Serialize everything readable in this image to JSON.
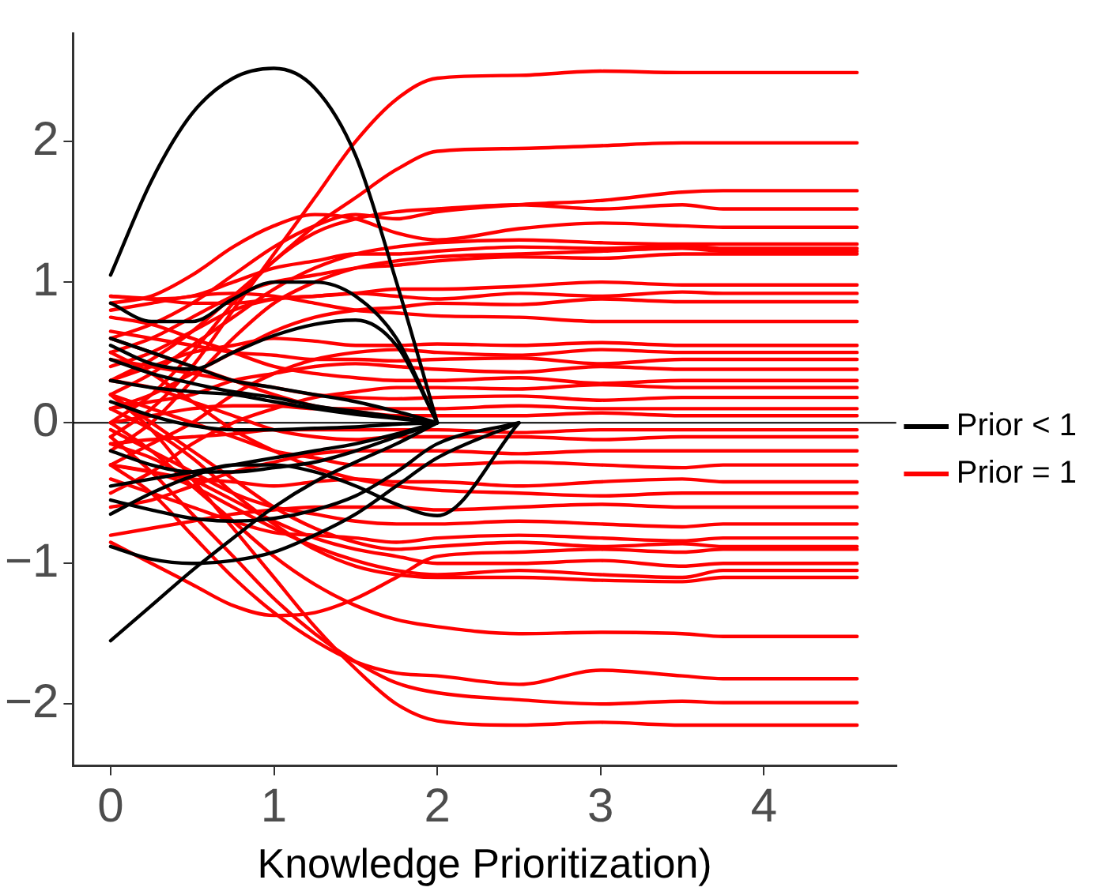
{
  "chart_data": {
    "type": "line",
    "xlabel": "Knowledge Prioritization)",
    "x": [
      0,
      0.25,
      0.5,
      0.75,
      1,
      1.25,
      1.5,
      1.75,
      2,
      2.5,
      3,
      3.5,
      3.75,
      4.57
    ],
    "xlim": [
      -0.23,
      4.81
    ],
    "xticks": [
      0,
      1,
      2,
      3,
      4
    ],
    "ylim": [
      -2.44,
      2.77
    ],
    "yticks": [
      -2,
      -1,
      0,
      1,
      2
    ],
    "grid": false,
    "legend": "right",
    "marker": "none",
    "line_style": "solid",
    "ref_lines": [
      {
        "axis": "y",
        "value": 0,
        "color": "#000000"
      }
    ],
    "series": [
      {
        "name": "Prior < 1",
        "color": "#000000",
        "values": [
          1.05,
          1.72,
          2.2,
          2.45,
          2.52,
          2.38,
          1.9,
          1.0,
          0,
          null,
          null,
          null,
          null,
          null
        ]
      },
      {
        "color": "#000000",
        "values": [
          0.85,
          0.72,
          0.72,
          0.88,
          1.0,
          1.0,
          0.9,
          0.6,
          0,
          null,
          null,
          null,
          null,
          null
        ]
      },
      {
        "color": "#000000",
        "values": [
          -1.55,
          -1.3,
          -1.05,
          -0.82,
          -0.6,
          -0.42,
          -0.28,
          -0.15,
          0,
          null,
          null,
          null,
          null,
          null
        ]
      },
      {
        "color": "#000000",
        "values": [
          -0.88,
          -0.97,
          -1.0,
          -0.98,
          -0.92,
          -0.8,
          -0.65,
          -0.45,
          -0.25,
          0,
          null,
          null,
          null,
          null
        ]
      },
      {
        "color": "#000000",
        "values": [
          0.55,
          0.42,
          0.38,
          0.5,
          0.62,
          0.7,
          0.73,
          0.55,
          0,
          null,
          null,
          null,
          null,
          null
        ]
      },
      {
        "color": "#000000",
        "values": [
          -0.65,
          -0.5,
          -0.38,
          -0.3,
          -0.3,
          -0.35,
          -0.45,
          -0.58,
          -0.66,
          0,
          null,
          null,
          null,
          null
        ]
      },
      {
        "color": "#000000",
        "values": [
          0.6,
          0.5,
          0.4,
          0.3,
          0.25,
          0.2,
          0.15,
          0.08,
          0,
          null,
          null,
          null,
          null,
          null
        ]
      },
      {
        "color": "#000000",
        "values": [
          0.45,
          0.35,
          0.28,
          0.22,
          0.18,
          0.12,
          0.08,
          0.04,
          0,
          null,
          null,
          null,
          null,
          null
        ]
      },
      {
        "color": "#000000",
        "values": [
          0.3,
          0.25,
          0.22,
          0.2,
          0.15,
          0.1,
          0.06,
          0.03,
          0,
          null,
          null,
          null,
          null,
          null
        ]
      },
      {
        "color": "#000000",
        "values": [
          -0.2,
          -0.3,
          -0.35,
          -0.35,
          -0.32,
          -0.28,
          -0.2,
          -0.1,
          0,
          null,
          null,
          null,
          null,
          null
        ]
      },
      {
        "color": "#000000",
        "values": [
          -0.45,
          -0.4,
          -0.35,
          -0.3,
          -0.25,
          -0.2,
          -0.15,
          -0.08,
          0,
          null,
          null,
          null,
          null,
          null
        ]
      },
      {
        "color": "#000000",
        "values": [
          -0.55,
          -0.62,
          -0.68,
          -0.7,
          -0.68,
          -0.62,
          -0.52,
          -0.35,
          -0.15,
          0,
          null,
          null,
          null,
          null
        ]
      },
      {
        "color": "#000000",
        "values": [
          0.15,
          0.05,
          -0.02,
          -0.05,
          -0.05,
          -0.04,
          -0.03,
          -0.01,
          0,
          null,
          null,
          null,
          null,
          null
        ]
      },
      {
        "name": "Prior = 1",
        "color": "#ff0000",
        "values": [
          -0.1,
          0.1,
          0.4,
          0.8,
          1.2,
          1.6,
          2.0,
          2.3,
          2.45,
          2.47,
          2.5,
          2.49,
          2.49,
          2.49
        ]
      },
      {
        "color": "#ff0000",
        "values": [
          0.3,
          0.45,
          0.65,
          0.9,
          1.15,
          1.4,
          1.6,
          1.8,
          1.93,
          1.95,
          1.97,
          1.99,
          1.99,
          1.99
        ]
      },
      {
        "color": "#ff0000",
        "values": [
          0.6,
          0.7,
          0.85,
          1.05,
          1.25,
          1.4,
          1.48,
          1.45,
          1.5,
          1.55,
          1.58,
          1.64,
          1.65,
          1.65
        ]
      },
      {
        "color": "#ff0000",
        "values": [
          0.0,
          0.2,
          0.5,
          0.85,
          1.15,
          1.35,
          1.45,
          1.5,
          1.52,
          1.55,
          1.52,
          1.55,
          1.52,
          1.52
        ]
      },
      {
        "color": "#ff0000",
        "values": [
          0.85,
          0.9,
          1.05,
          1.25,
          1.4,
          1.48,
          1.45,
          1.35,
          1.3,
          1.38,
          1.42,
          1.4,
          1.39,
          1.39
        ]
      },
      {
        "color": "#ff0000",
        "values": [
          0.2,
          0.35,
          0.55,
          0.75,
          0.95,
          1.1,
          1.2,
          1.25,
          1.28,
          1.3,
          1.28,
          1.27,
          1.27,
          1.27
        ]
      },
      {
        "color": "#ff0000",
        "values": [
          0.9,
          0.88,
          0.9,
          1.0,
          1.1,
          1.15,
          1.2,
          1.2,
          1.22,
          1.25,
          1.24,
          1.26,
          1.24,
          1.24
        ]
      },
      {
        "color": "#ff0000",
        "values": [
          -0.2,
          0.0,
          0.3,
          0.6,
          0.85,
          1.0,
          1.1,
          1.15,
          1.18,
          1.2,
          1.22,
          1.24,
          1.22,
          1.22
        ]
      },
      {
        "color": "#ff0000",
        "values": [
          0.5,
          0.6,
          0.75,
          0.9,
          1.0,
          1.05,
          1.1,
          1.12,
          1.15,
          1.18,
          1.17,
          1.2,
          1.2,
          1.2
        ]
      },
      {
        "color": "#ff0000",
        "values": [
          0.4,
          0.5,
          0.65,
          0.8,
          0.88,
          0.9,
          0.92,
          0.95,
          0.95,
          0.97,
          1.0,
          0.98,
          0.98,
          0.98
        ]
      },
      {
        "color": "#ff0000",
        "values": [
          0.9,
          0.88,
          0.85,
          0.85,
          0.88,
          0.9,
          0.92,
          0.9,
          0.88,
          0.92,
          0.9,
          0.93,
          0.92,
          0.92
        ]
      },
      {
        "color": "#ff0000",
        "values": [
          0.1,
          0.2,
          0.35,
          0.5,
          0.65,
          0.75,
          0.8,
          0.82,
          0.85,
          0.84,
          0.88,
          0.86,
          0.86,
          0.86
        ]
      },
      {
        "color": "#ff0000",
        "values": [
          0.8,
          0.85,
          0.9,
          0.92,
          0.9,
          0.85,
          0.8,
          0.78,
          0.76,
          0.75,
          0.72,
          0.72,
          0.72,
          0.72
        ]
      },
      {
        "color": "#ff0000",
        "values": [
          0.3,
          0.4,
          0.5,
          0.55,
          0.6,
          0.58,
          0.55,
          0.55,
          0.56,
          0.55,
          0.57,
          0.55,
          0.55,
          0.55
        ]
      },
      {
        "color": "#ff0000",
        "values": [
          -0.3,
          -0.15,
          0.0,
          0.2,
          0.35,
          0.45,
          0.5,
          0.52,
          0.5,
          0.48,
          0.52,
          0.5,
          0.5,
          0.5
        ]
      },
      {
        "color": "#ff0000",
        "values": [
          0.65,
          0.6,
          0.55,
          0.5,
          0.48,
          0.45,
          0.45,
          0.44,
          0.45,
          0.46,
          0.42,
          0.45,
          0.45,
          0.45
        ]
      },
      {
        "color": "#ff0000",
        "values": [
          0.1,
          0.15,
          0.2,
          0.3,
          0.35,
          0.4,
          0.42,
          0.4,
          0.38,
          0.36,
          0.4,
          0.38,
          0.38,
          0.38
        ]
      },
      {
        "color": "#ff0000",
        "values": [
          0.75,
          0.7,
          0.6,
          0.5,
          0.4,
          0.35,
          0.32,
          0.3,
          0.3,
          0.32,
          0.28,
          0.3,
          0.3,
          0.3
        ]
      },
      {
        "color": "#ff0000",
        "values": [
          -0.5,
          -0.35,
          -0.15,
          0.0,
          0.1,
          0.18,
          0.22,
          0.25,
          0.25,
          0.24,
          0.27,
          0.25,
          0.25,
          0.25
        ]
      },
      {
        "color": "#ff0000",
        "values": [
          0.45,
          0.4,
          0.35,
          0.3,
          0.25,
          0.2,
          0.18,
          0.17,
          0.18,
          0.19,
          0.16,
          0.18,
          0.18,
          0.18
        ]
      },
      {
        "color": "#ff0000",
        "values": [
          0.0,
          0.05,
          0.1,
          0.12,
          0.12,
          0.1,
          0.1,
          0.1,
          0.1,
          0.12,
          0.1,
          0.1,
          0.1,
          0.1
        ]
      },
      {
        "color": "#ff0000",
        "values": [
          0.6,
          0.5,
          0.4,
          0.3,
          0.2,
          0.12,
          0.08,
          0.05,
          0.05,
          0.05,
          0.07,
          0.05,
          0.05,
          0.05
        ]
      },
      {
        "color": "#ff0000",
        "values": [
          -0.15,
          -0.12,
          -0.1,
          -0.08,
          -0.05,
          -0.05,
          -0.05,
          -0.05,
          -0.05,
          -0.07,
          -0.05,
          -0.05,
          -0.05,
          -0.05
        ]
      },
      {
        "color": "#ff0000",
        "values": [
          0.3,
          0.25,
          0.15,
          0.05,
          -0.05,
          -0.1,
          -0.12,
          -0.1,
          -0.1,
          -0.1,
          -0.12,
          -0.1,
          -0.1,
          -0.1
        ]
      },
      {
        "color": "#ff0000",
        "values": [
          -0.6,
          -0.55,
          -0.45,
          -0.35,
          -0.28,
          -0.22,
          -0.2,
          -0.2,
          -0.2,
          -0.22,
          -0.2,
          -0.2,
          -0.2,
          -0.2
        ]
      },
      {
        "color": "#ff0000",
        "values": [
          0.2,
          0.1,
          0.0,
          -0.1,
          -0.2,
          -0.25,
          -0.3,
          -0.3,
          -0.3,
          -0.28,
          -0.3,
          -0.32,
          -0.3,
          -0.3
        ]
      },
      {
        "color": "#ff0000",
        "values": [
          -0.3,
          -0.35,
          -0.4,
          -0.42,
          -0.45,
          -0.42,
          -0.4,
          -0.42,
          -0.42,
          -0.45,
          -0.42,
          -0.4,
          -0.42,
          -0.42
        ]
      },
      {
        "color": "#ff0000",
        "values": [
          0.5,
          0.35,
          0.15,
          -0.05,
          -0.2,
          -0.32,
          -0.4,
          -0.45,
          -0.48,
          -0.5,
          -0.52,
          -0.5,
          -0.5,
          -0.5
        ]
      },
      {
        "color": "#ff0000",
        "values": [
          -0.8,
          -0.75,
          -0.7,
          -0.65,
          -0.62,
          -0.6,
          -0.6,
          -0.6,
          -0.62,
          -0.6,
          -0.58,
          -0.6,
          -0.6,
          -0.6
        ]
      },
      {
        "color": "#ff0000",
        "values": [
          -0.05,
          -0.2,
          -0.35,
          -0.5,
          -0.6,
          -0.65,
          -0.7,
          -0.72,
          -0.72,
          -0.7,
          -0.72,
          -0.74,
          -0.72,
          -0.72
        ]
      },
      {
        "color": "#ff0000",
        "values": [
          -0.4,
          -0.5,
          -0.6,
          -0.7,
          -0.78,
          -0.8,
          -0.82,
          -0.85,
          -0.82,
          -0.8,
          -0.82,
          -0.84,
          -0.82,
          -0.82
        ]
      },
      {
        "color": "#ff0000",
        "values": [
          0.2,
          0.0,
          -0.2,
          -0.4,
          -0.6,
          -0.75,
          -0.85,
          -0.9,
          -0.88,
          -0.85,
          -0.88,
          -0.86,
          -0.88,
          -0.88
        ]
      },
      {
        "color": "#ff0000",
        "values": [
          -0.85,
          -1.0,
          -1.15,
          -1.3,
          -1.37,
          -1.35,
          -1.25,
          -1.1,
          -0.95,
          -0.92,
          -0.9,
          -0.92,
          -0.9,
          -0.9
        ]
      },
      {
        "color": "#ff0000",
        "values": [
          -0.15,
          -0.25,
          -0.4,
          -0.55,
          -0.7,
          -0.82,
          -0.9,
          -0.95,
          -1.0,
          -1.0,
          -0.98,
          -1.02,
          -1.0,
          -1.0
        ]
      },
      {
        "color": "#ff0000",
        "values": [
          -0.3,
          -0.35,
          -0.45,
          -0.6,
          -0.75,
          -0.88,
          -0.98,
          -1.05,
          -1.08,
          -1.05,
          -1.08,
          -1.1,
          -1.05,
          -1.05
        ]
      },
      {
        "color": "#ff0000",
        "values": [
          0.1,
          -0.05,
          -0.25,
          -0.5,
          -0.72,
          -0.9,
          -1.02,
          -1.08,
          -1.1,
          -1.1,
          -1.12,
          -1.13,
          -1.1,
          -1.1
        ]
      },
      {
        "color": "#ff0000",
        "values": [
          0.0,
          -0.2,
          -0.45,
          -0.7,
          -0.95,
          -1.15,
          -1.3,
          -1.4,
          -1.45,
          -1.5,
          -1.49,
          -1.5,
          -1.52,
          -1.52
        ]
      },
      {
        "color": "#ff0000",
        "values": [
          -0.3,
          -0.5,
          -0.8,
          -1.1,
          -1.35,
          -1.55,
          -1.7,
          -1.78,
          -1.8,
          -1.86,
          -1.76,
          -1.8,
          -1.82,
          -1.82
        ]
      },
      {
        "color": "#ff0000",
        "values": [
          -0.1,
          -0.35,
          -0.65,
          -0.95,
          -1.25,
          -1.5,
          -1.7,
          -1.85,
          -1.92,
          -1.97,
          -2.0,
          -1.98,
          -1.99,
          -1.99
        ]
      },
      {
        "color": "#ff0000",
        "values": [
          0.2,
          -0.05,
          -0.4,
          -0.75,
          -1.1,
          -1.45,
          -1.75,
          -2.0,
          -2.12,
          -2.15,
          -2.13,
          -2.15,
          -2.15,
          -2.15
        ]
      }
    ]
  }
}
